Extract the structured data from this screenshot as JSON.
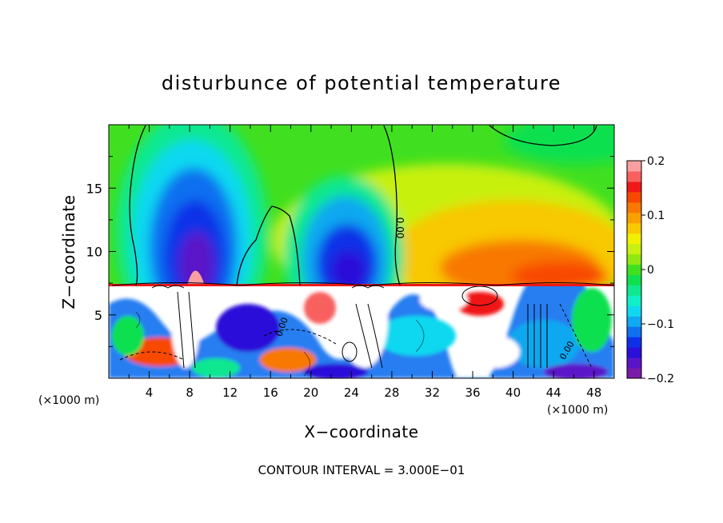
{
  "chart_data": {
    "type": "heatmap",
    "title": "disturbunce of potential temperature",
    "xlabel": "X−coordinate",
    "ylabel": "Z−coordinate",
    "x_unit_left": "(×1000 m)",
    "x_unit_right": "(×1000 m)",
    "footer": "CONTOUR INTERVAL = 3.000E−01",
    "xlim": [
      0,
      50
    ],
    "ylim": [
      0,
      20
    ],
    "x_ticks": [
      4,
      8,
      12,
      16,
      20,
      24,
      28,
      32,
      36,
      40,
      44,
      48
    ],
    "x_tick_labels": [
      "4",
      "8",
      "12",
      "16",
      "20",
      "24",
      "28",
      "32",
      "36",
      "40",
      "44",
      "48"
    ],
    "y_ticks": [
      5,
      10,
      15
    ],
    "y_tick_labels": [
      "5",
      "10",
      "15"
    ],
    "contour_labels": [
      "0.00",
      "0.00",
      "0.00"
    ],
    "colorbar": {
      "range": [
        -0.2,
        0.2
      ],
      "tick_values": [
        0.2,
        0.1,
        0,
        -0.1,
        -0.2
      ],
      "tick_labels": [
        "0.2",
        "0.1",
        "0",
        "−0.1",
        "−0.2"
      ],
      "colors": [
        "#7a1aa8",
        "#5a14c8",
        "#2a10d8",
        "#1030e8",
        "#1070f0",
        "#10a8f0",
        "#10d8f0",
        "#10f0c8",
        "#10e890",
        "#10e050",
        "#40e020",
        "#90e810",
        "#c8f010",
        "#f0f000",
        "#f8c800",
        "#f8a000",
        "#f87800",
        "#f84800",
        "#f01818",
        "#f86060",
        "#f8a0a0"
      ]
    },
    "upper_region_description_values": [
      {
        "x": 8.5,
        "z": 11.5,
        "value": -0.2
      },
      {
        "x": 23.5,
        "z": 10.0,
        "value": -0.18
      },
      {
        "x": 42,
        "z": 10.0,
        "value": 0.13
      },
      {
        "x": 24,
        "z": 17,
        "value": 0.0
      }
    ]
  }
}
